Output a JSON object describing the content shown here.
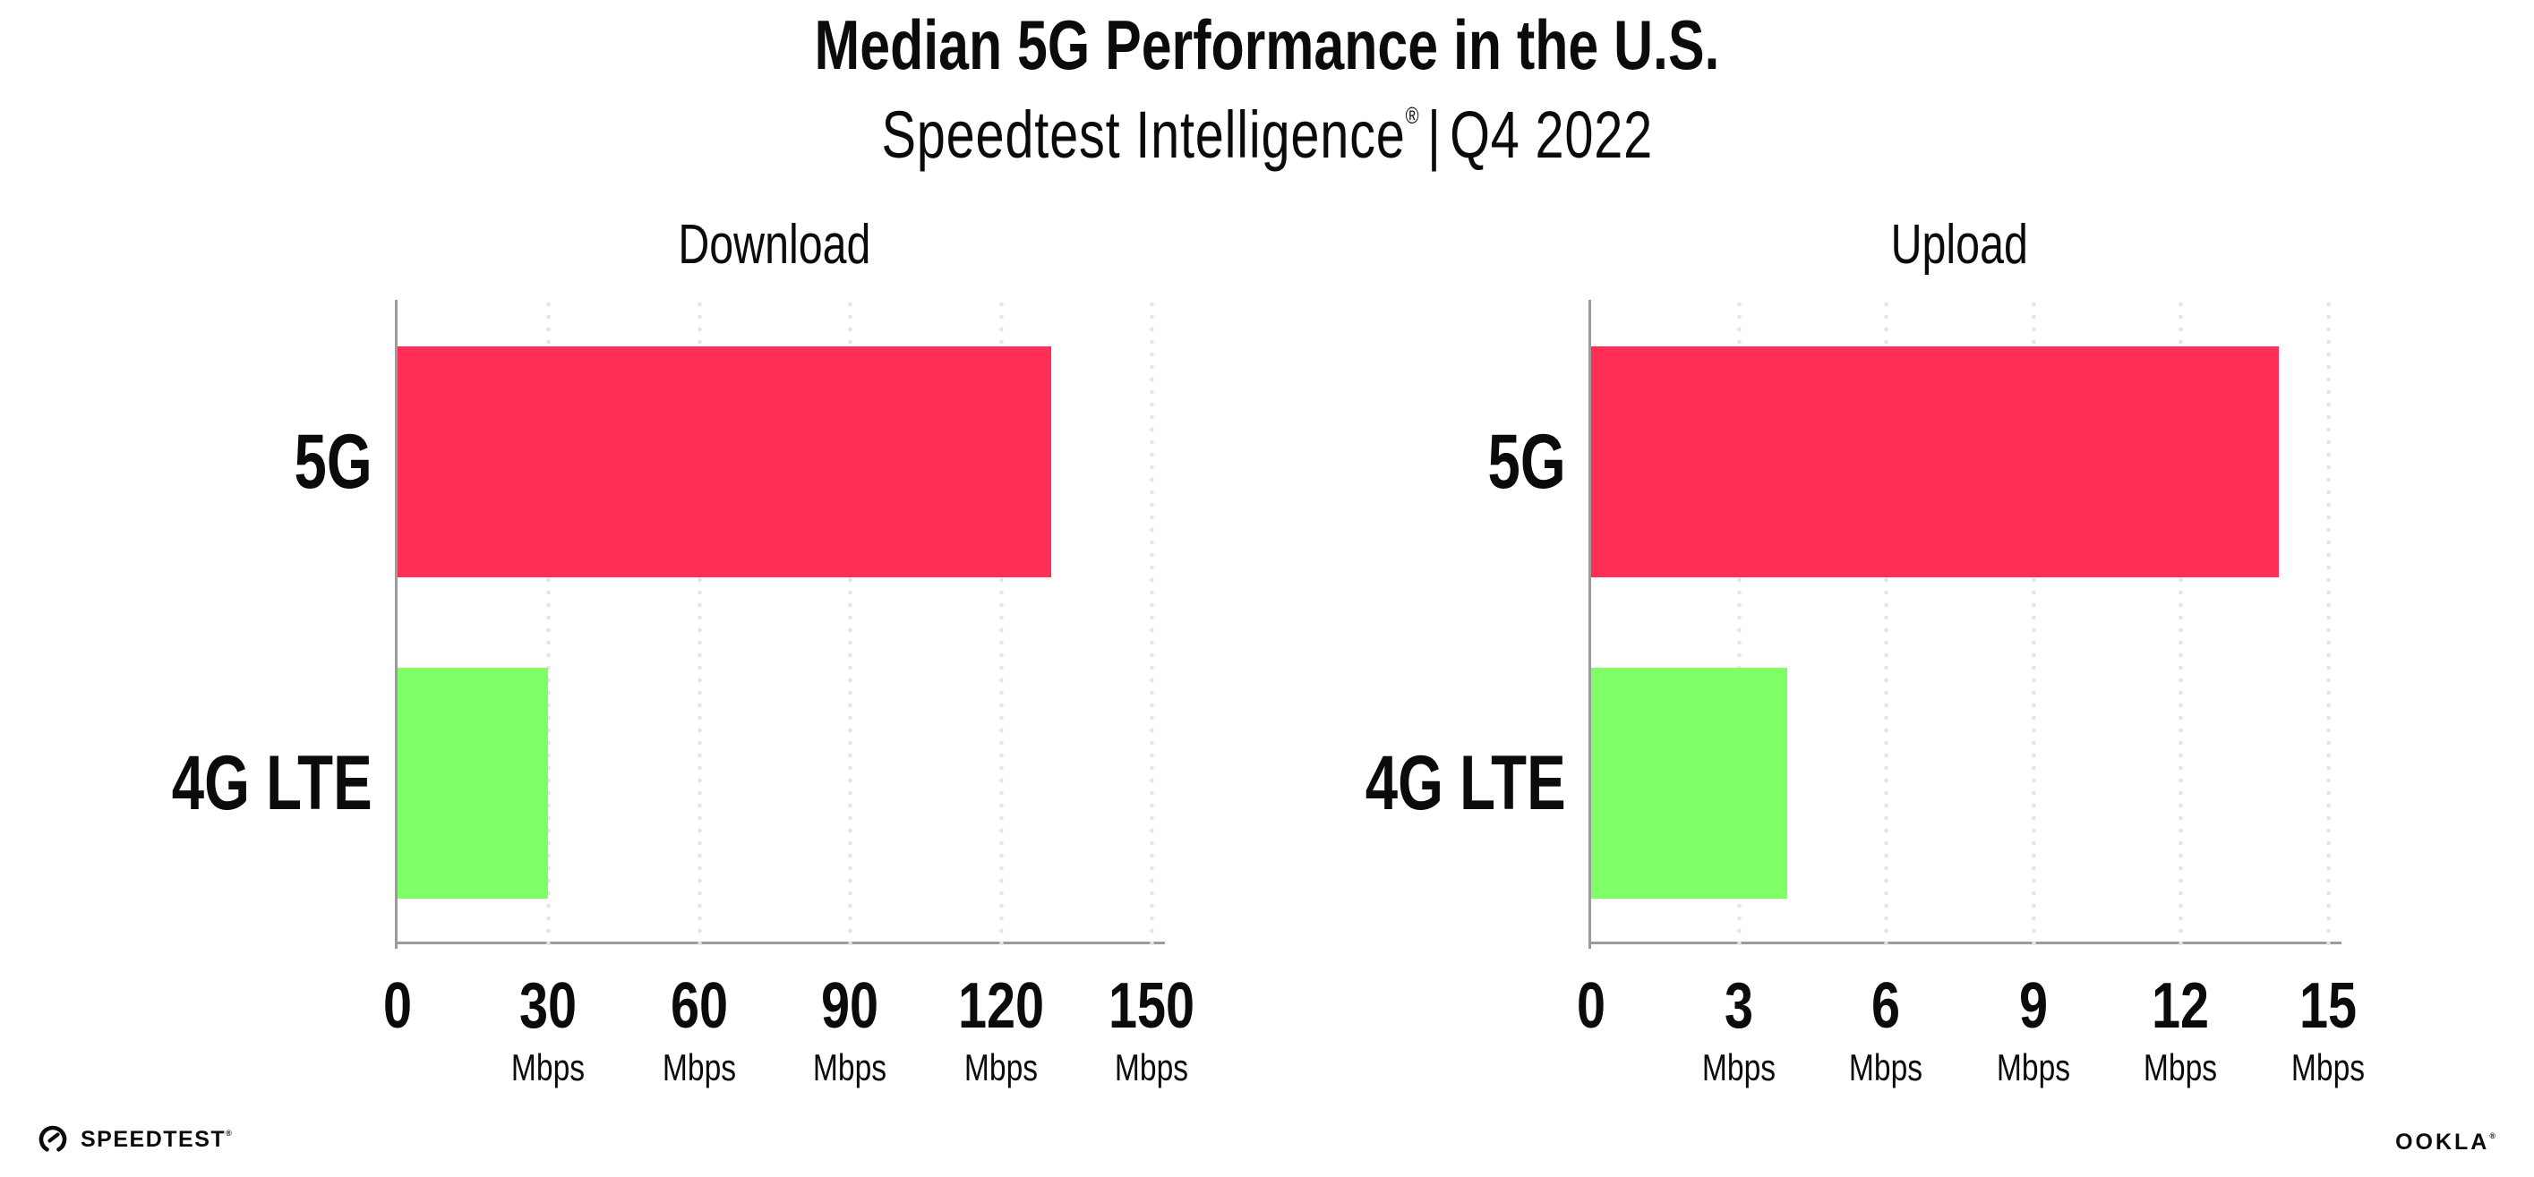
{
  "header": {
    "title": "Median 5G Performance in the U.S.",
    "subtitle_brand": "Speedtest Intelligence",
    "subtitle_reg": "®",
    "subtitle_sep": "|",
    "subtitle_period": "Q4 2022"
  },
  "colors": {
    "bar_5g": "#FF2E56",
    "bar_4g_lte": "#80FF66",
    "axis_line": "#9B9B9B",
    "gridline_dots": "#E4E4EF",
    "text": "#0B0B0B",
    "background": "#FFFFFF"
  },
  "chart_data": [
    {
      "type": "bar",
      "orientation": "horizontal",
      "title": "Download",
      "categories": [
        "5G",
        "4G LTE"
      ],
      "values": [
        130,
        30
      ],
      "unit": "Mbps",
      "xlim": [
        0,
        150
      ],
      "xticks": [
        0,
        30,
        60,
        90,
        120,
        150
      ],
      "grid": "dotted-vertical",
      "legend": "none",
      "bar_colors": [
        "#FF2E56",
        "#80FF66"
      ]
    },
    {
      "type": "bar",
      "orientation": "horizontal",
      "title": "Upload",
      "categories": [
        "5G",
        "4G LTE"
      ],
      "values": [
        14,
        4
      ],
      "unit": "Mbps",
      "xlim": [
        0,
        15
      ],
      "xticks": [
        0,
        3,
        6,
        9,
        12,
        15
      ],
      "grid": "dotted-vertical",
      "legend": "none",
      "bar_colors": [
        "#FF2E56",
        "#80FF66"
      ]
    }
  ],
  "footer": {
    "speedtest_label": "SPEEDTEST",
    "speedtest_reg": "®",
    "ookla_label": "OOKLA",
    "ookla_reg": "®"
  }
}
